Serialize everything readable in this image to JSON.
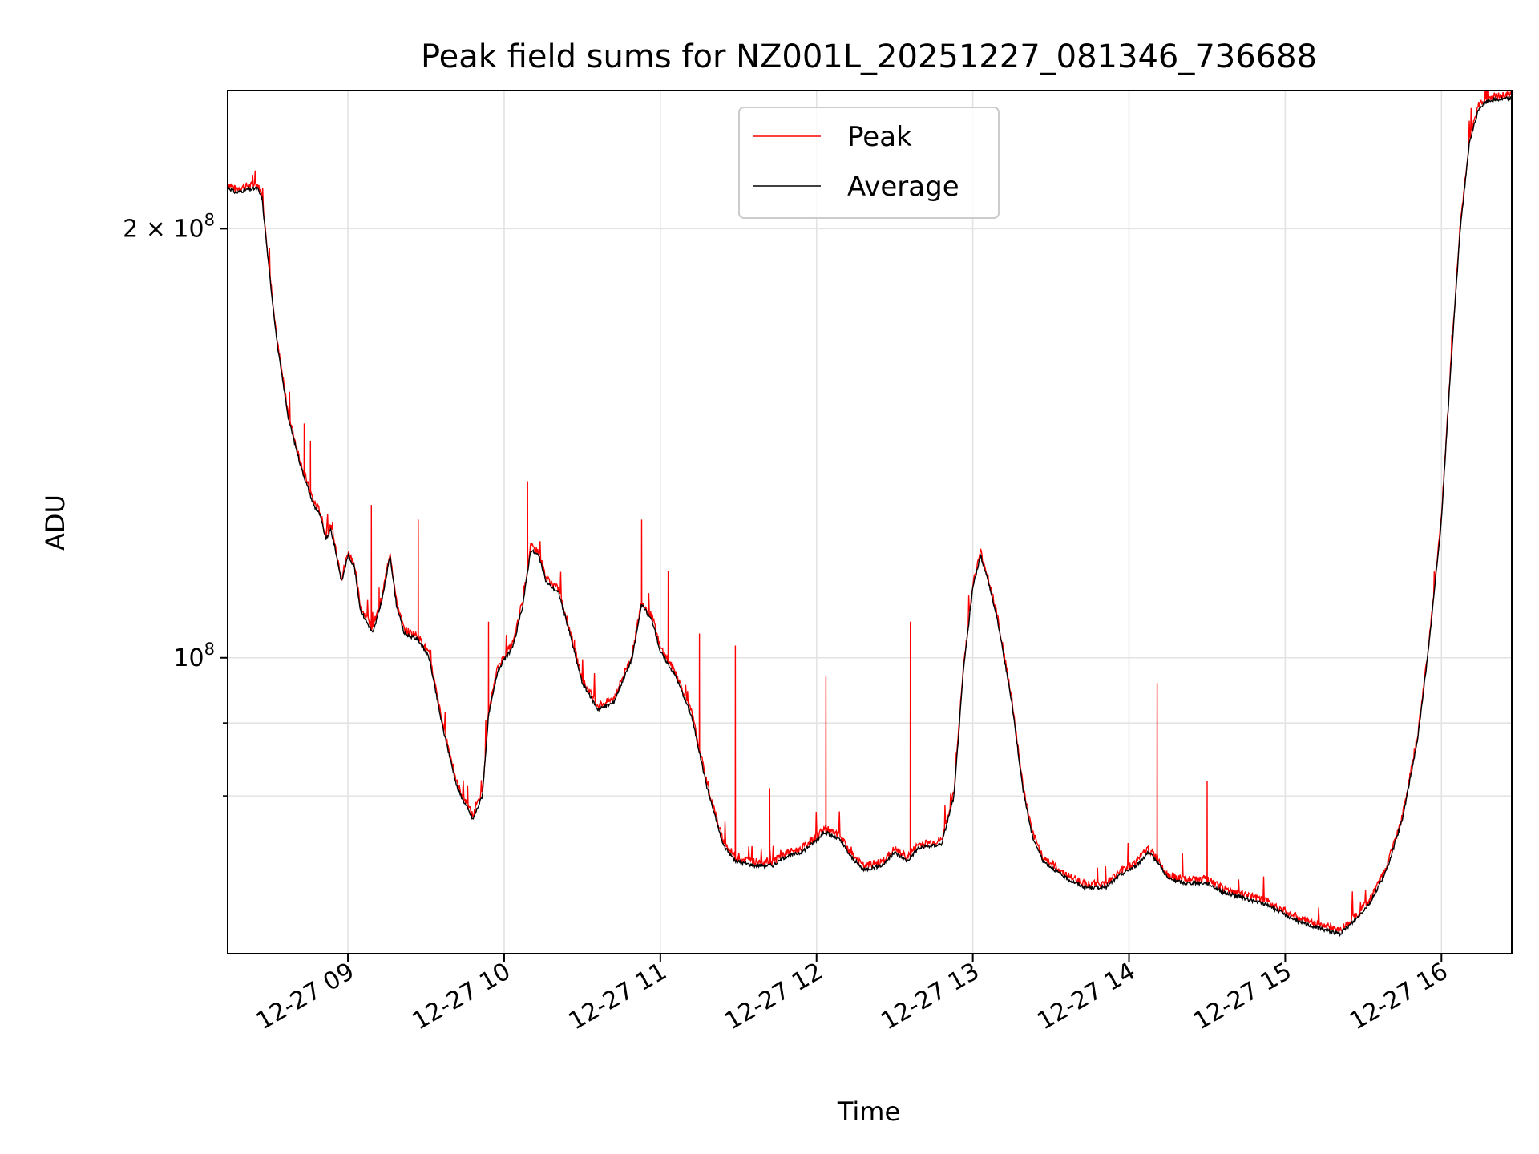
{
  "chart_data": {
    "type": "line",
    "title": "Peak field sums for NZ001L_20251227_081346_736688",
    "xlabel": "Time",
    "ylabel": "ADU",
    "yscale": "log",
    "xlim": [
      8.23,
      16.45
    ],
    "ylim": [
      62000000,
      250000000
    ],
    "grid": true,
    "legend_position": "top-center",
    "x_ticks": [
      {
        "value": 9,
        "label": "12-27 09"
      },
      {
        "value": 10,
        "label": "12-27 10"
      },
      {
        "value": 11,
        "label": "12-27 11"
      },
      {
        "value": 12,
        "label": "12-27 12"
      },
      {
        "value": 13,
        "label": "12-27 13"
      },
      {
        "value": 14,
        "label": "12-27 14"
      },
      {
        "value": 15,
        "label": "12-27 15"
      },
      {
        "value": 16,
        "label": "12-27 16"
      }
    ],
    "y_major_ticks": [
      {
        "value": 100000000,
        "base": "10",
        "exp": "8"
      },
      {
        "value": 200000000,
        "base": "2 × 10",
        "exp": "8"
      }
    ],
    "y_minor_ticks": [
      80000000,
      90000000
    ],
    "x_unit": "hours since 2025-12-27 00:00",
    "series": [
      {
        "name": "Average",
        "color": "#000000",
        "points": [
          [
            8.23,
            214000000
          ],
          [
            8.28,
            212000000
          ],
          [
            8.35,
            213000000
          ],
          [
            8.42,
            213500000
          ],
          [
            8.45,
            210000000
          ],
          [
            8.5,
            185000000
          ],
          [
            8.55,
            165000000
          ],
          [
            8.62,
            147000000
          ],
          [
            8.7,
            136000000
          ],
          [
            8.78,
            128000000
          ],
          [
            8.82,
            126000000
          ],
          [
            8.86,
            121000000
          ],
          [
            8.89,
            123000000
          ],
          [
            8.92,
            119000000
          ],
          [
            8.96,
            113000000
          ],
          [
            9.0,
            118000000
          ],
          [
            9.04,
            116000000
          ],
          [
            9.08,
            108000000
          ],
          [
            9.16,
            104000000
          ],
          [
            9.22,
            110000000
          ],
          [
            9.27,
            118000000
          ],
          [
            9.31,
            109000000
          ],
          [
            9.36,
            104000000
          ],
          [
            9.45,
            103000000
          ],
          [
            9.52,
            100000000
          ],
          [
            9.6,
            90000000
          ],
          [
            9.7,
            81000000
          ],
          [
            9.8,
            77000000
          ],
          [
            9.86,
            80000000
          ],
          [
            9.9,
            91000000
          ],
          [
            9.96,
            98000000
          ],
          [
            10.06,
            102000000
          ],
          [
            10.12,
            109000000
          ],
          [
            10.17,
            119000000
          ],
          [
            10.22,
            118000000
          ],
          [
            10.27,
            113000000
          ],
          [
            10.35,
            111000000
          ],
          [
            10.42,
            104000000
          ],
          [
            10.5,
            96000000
          ],
          [
            10.6,
            92000000
          ],
          [
            10.7,
            93000000
          ],
          [
            10.82,
            100000000
          ],
          [
            10.88,
            109000000
          ],
          [
            10.95,
            106000000
          ],
          [
            11.0,
            101000000
          ],
          [
            11.1,
            97000000
          ],
          [
            11.2,
            91000000
          ],
          [
            11.3,
            81000000
          ],
          [
            11.4,
            74000000
          ],
          [
            11.48,
            72000000
          ],
          [
            11.6,
            71500000
          ],
          [
            11.72,
            71500000
          ],
          [
            11.8,
            72500000
          ],
          [
            11.9,
            73000000
          ],
          [
            12.0,
            74500000
          ],
          [
            12.05,
            75500000
          ],
          [
            12.15,
            74500000
          ],
          [
            12.22,
            72500000
          ],
          [
            12.3,
            71000000
          ],
          [
            12.42,
            71500000
          ],
          [
            12.5,
            73000000
          ],
          [
            12.58,
            72000000
          ],
          [
            12.65,
            73500000
          ],
          [
            12.8,
            74000000
          ],
          [
            12.88,
            80000000
          ],
          [
            12.94,
            98000000
          ],
          [
            13.0,
            112000000
          ],
          [
            13.05,
            118000000
          ],
          [
            13.1,
            113000000
          ],
          [
            13.16,
            106000000
          ],
          [
            13.25,
            93000000
          ],
          [
            13.32,
            81000000
          ],
          [
            13.38,
            75000000
          ],
          [
            13.45,
            72000000
          ],
          [
            13.6,
            70000000
          ],
          [
            13.72,
            69000000
          ],
          [
            13.85,
            69000000
          ],
          [
            13.95,
            70500000
          ],
          [
            14.05,
            71500000
          ],
          [
            14.12,
            73000000
          ],
          [
            14.18,
            72000000
          ],
          [
            14.25,
            70000000
          ],
          [
            14.35,
            69500000
          ],
          [
            14.5,
            69500000
          ],
          [
            14.6,
            68500000
          ],
          [
            14.7,
            68000000
          ],
          [
            14.8,
            67500000
          ],
          [
            14.9,
            67000000
          ],
          [
            15.0,
            66000000
          ],
          [
            15.1,
            65200000
          ],
          [
            15.2,
            64700000
          ],
          [
            15.35,
            64000000
          ],
          [
            15.45,
            65500000
          ],
          [
            15.55,
            67500000
          ],
          [
            15.65,
            71000000
          ],
          [
            15.75,
            77000000
          ],
          [
            15.85,
            88000000
          ],
          [
            15.92,
            102000000
          ],
          [
            16.0,
            125000000
          ],
          [
            16.06,
            160000000
          ],
          [
            16.12,
            200000000
          ],
          [
            16.18,
            230000000
          ],
          [
            16.24,
            243000000
          ],
          [
            16.3,
            246000000
          ],
          [
            16.45,
            247000000
          ]
        ]
      },
      {
        "name": "Peak",
        "color": "#ff0000",
        "spikes": [
          [
            8.72,
            146000000
          ],
          [
            8.76,
            142000000
          ],
          [
            9.15,
            128000000
          ],
          [
            9.2,
            112000000
          ],
          [
            9.45,
            125000000
          ],
          [
            9.9,
            106000000
          ],
          [
            10.15,
            133000000
          ],
          [
            10.45,
            103000000
          ],
          [
            10.88,
            125000000
          ],
          [
            11.05,
            115000000
          ],
          [
            11.25,
            104000000
          ],
          [
            11.48,
            102000000
          ],
          [
            11.7,
            81000000
          ],
          [
            12.06,
            97000000
          ],
          [
            12.6,
            106000000
          ],
          [
            14.18,
            96000000
          ],
          [
            14.5,
            82000000
          ]
        ]
      }
    ]
  }
}
